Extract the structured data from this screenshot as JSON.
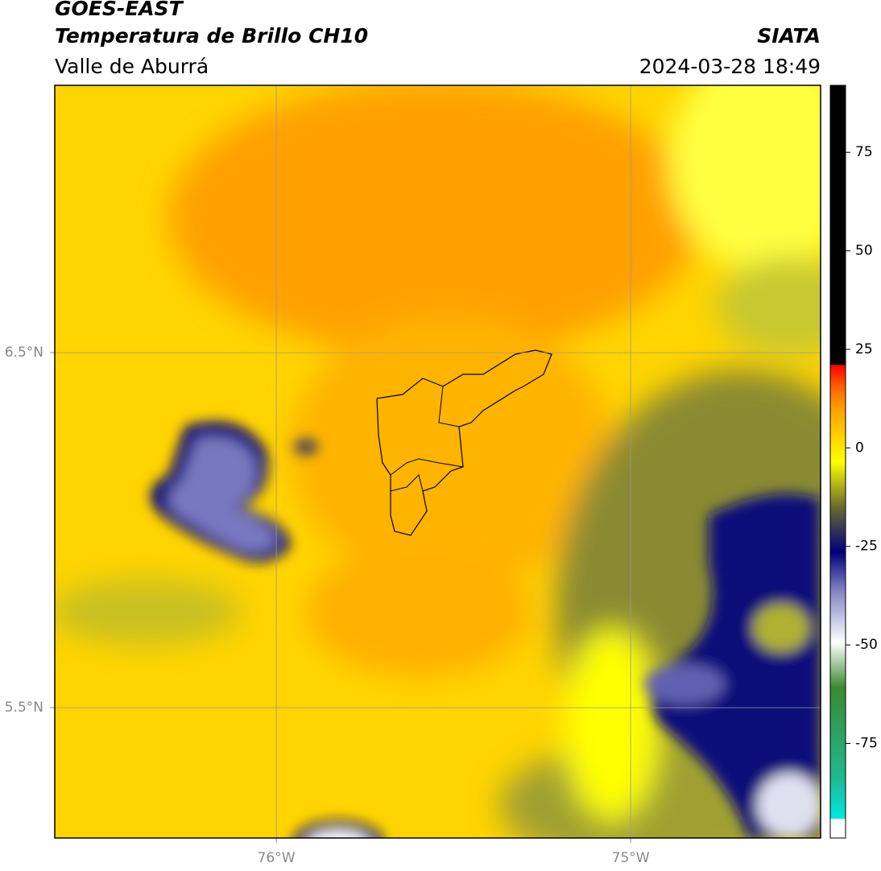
{
  "header": {
    "title": "GOES-EAST",
    "subtitle": "Temperatura de Brillo CH10",
    "region": "Valle de Aburrá",
    "agency": "SIATA",
    "timestamp": "2024-03-28 18:49"
  },
  "map": {
    "xlim": [
      -76.625,
      -74.464
    ],
    "ylim": [
      5.133,
      7.253
    ],
    "xticks": [
      {
        "value": -76,
        "label": "76°W"
      },
      {
        "value": -75,
        "label": "75°W"
      }
    ],
    "yticks": [
      {
        "value": 6.5,
        "label": "6.5°N"
      },
      {
        "value": 5.5,
        "label": "5.5°N"
      }
    ],
    "grid": true
  },
  "colorbar": {
    "clim": [
      -99,
      92
    ],
    "ticks": [
      75,
      50,
      25,
      0,
      -25,
      -50,
      -75
    ]
  }
}
